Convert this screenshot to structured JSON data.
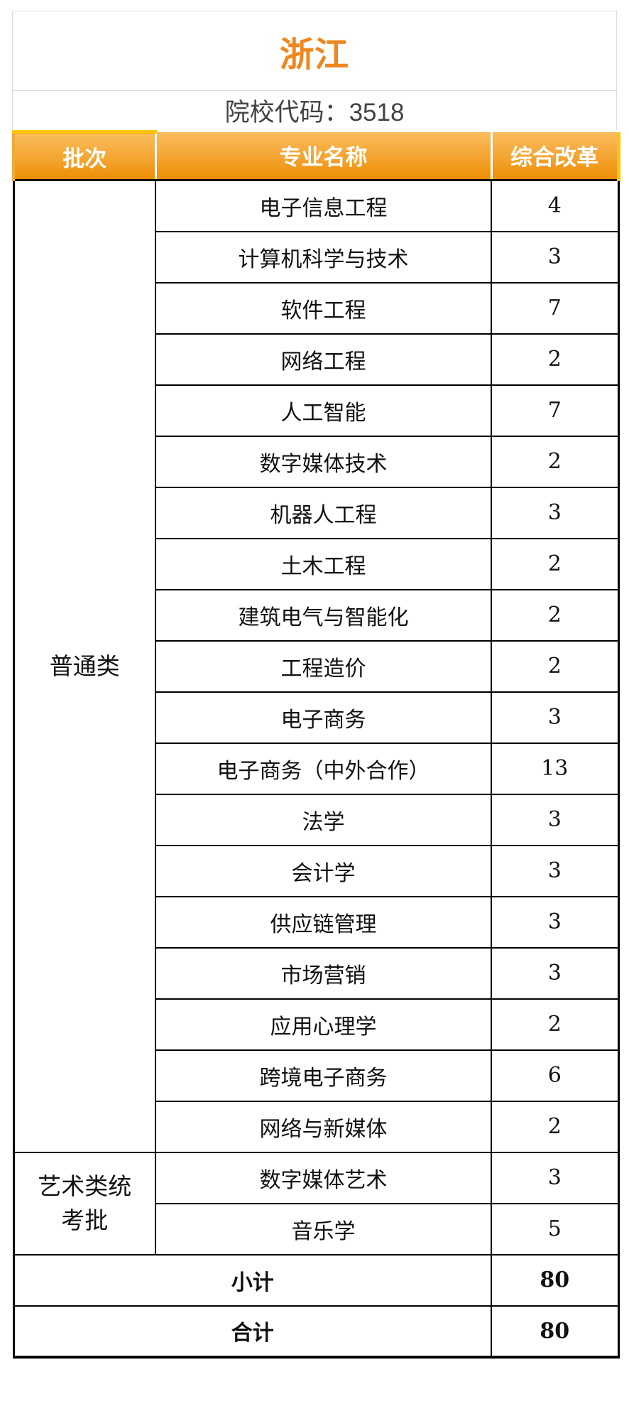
{
  "page": {
    "title": "浙江",
    "school_code_line": "院校代码：3518"
  },
  "colors": {
    "title_orange": "#f0861d",
    "header_gradient_top": "#f9bc5e",
    "header_gradient_bottom": "#ee8d05",
    "accent_yellow": "#fdc60b",
    "table_border": "#000000",
    "frame_border": "#dcdcdc",
    "code_text": "#434343"
  },
  "table": {
    "columns": [
      "批次",
      "专业名称",
      "综合改革"
    ],
    "sections": [
      {
        "batch": "普通类",
        "rows": [
          {
            "major": "电子信息工程",
            "value": "4"
          },
          {
            "major": "计算机科学与技术",
            "value": "3"
          },
          {
            "major": "软件工程",
            "value": "7"
          },
          {
            "major": "网络工程",
            "value": "2"
          },
          {
            "major": "人工智能",
            "value": "7"
          },
          {
            "major": "数字媒体技术",
            "value": "2"
          },
          {
            "major": "机器人工程",
            "value": "3"
          },
          {
            "major": "土木工程",
            "value": "2"
          },
          {
            "major": "建筑电气与智能化",
            "value": "2"
          },
          {
            "major": "工程造价",
            "value": "2"
          },
          {
            "major": "电子商务",
            "value": "3"
          },
          {
            "major": "电子商务（中外合作）",
            "value": "13"
          },
          {
            "major": "法学",
            "value": "3"
          },
          {
            "major": "会计学",
            "value": "3"
          },
          {
            "major": "供应链管理",
            "value": "3"
          },
          {
            "major": "市场营销",
            "value": "3"
          },
          {
            "major": "应用心理学",
            "value": "2"
          },
          {
            "major": "跨境电子商务",
            "value": "6"
          },
          {
            "major": "网络与新媒体",
            "value": "2"
          }
        ]
      },
      {
        "batch": "艺术类统\n考批",
        "rows": [
          {
            "major": "数字媒体艺术",
            "value": "3"
          },
          {
            "major": "音乐学",
            "value": "5"
          }
        ]
      }
    ],
    "totals": [
      {
        "label": "小计",
        "value": "80"
      },
      {
        "label": "合计",
        "value": "80"
      }
    ]
  }
}
